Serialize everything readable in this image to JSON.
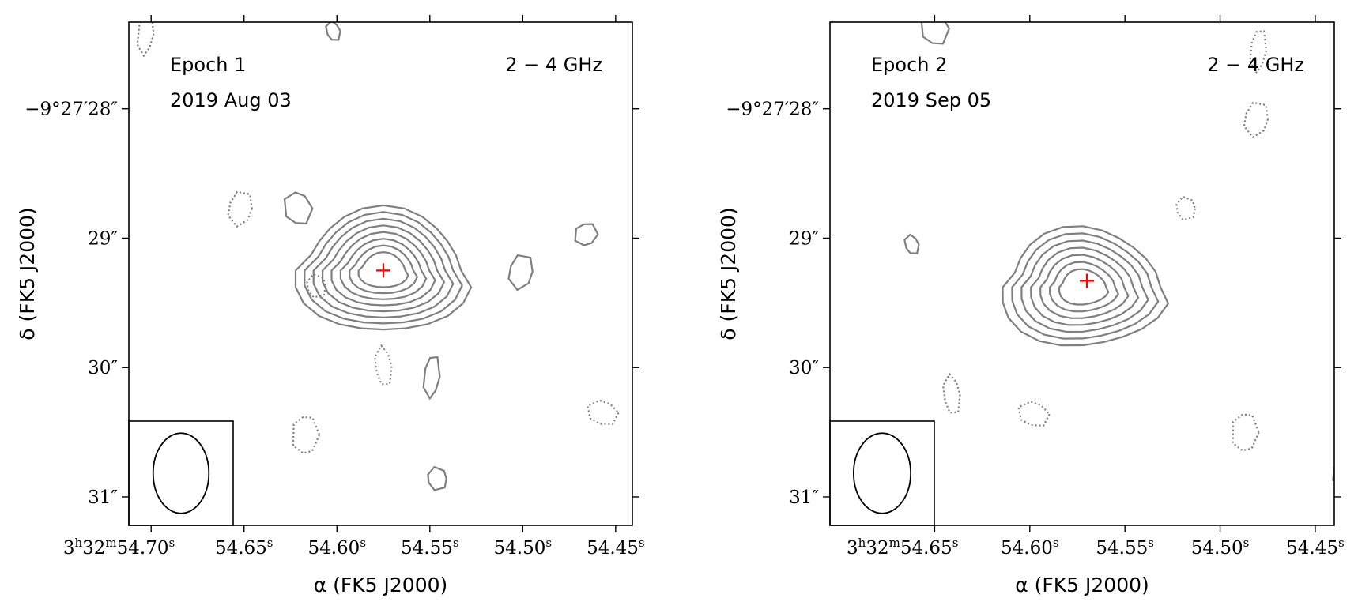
{
  "chart_data": [
    {
      "type": "contour",
      "epoch_label": "Epoch 1",
      "date_label": "2019 Aug 03",
      "band_label": "2 − 4 GHz",
      "xlabel": "α (FK5 J2000)",
      "ylabel": "δ (FK5 J2000)",
      "ra_ticks": [
        {
          "pos": 54.7,
          "label": "54.70",
          "prefix": "3h32m"
        },
        {
          "pos": 54.65,
          "label": "54.65"
        },
        {
          "pos": 54.6,
          "label": "54.60"
        },
        {
          "pos": 54.55,
          "label": "54.55"
        },
        {
          "pos": 54.5,
          "label": "54.50"
        },
        {
          "pos": 54.45,
          "label": "54.45"
        }
      ],
      "dec_ticks": [
        {
          "pos": 28,
          "label": "−9°27′28″"
        },
        {
          "pos": 29,
          "label": "29″"
        },
        {
          "pos": 30,
          "label": "30″"
        },
        {
          "pos": 31,
          "label": "31″"
        }
      ],
      "ra_range": [
        54.712,
        54.441
      ],
      "dec_range": [
        27.33,
        31.22
      ],
      "source_marker": {
        "ra": 54.575,
        "dec": 29.25,
        "color": "#ff0000"
      },
      "source_contours": {
        "ra": 54.575,
        "dec": 29.25,
        "levels": 8,
        "outer_semi_ra": 0.045,
        "outer_semi_dec": 0.48
      },
      "beam": {
        "semi_ra": 0.015,
        "semi_dec": 0.31
      },
      "positive_blobs": [
        {
          "ra": 54.602,
          "dec": 27.4
        },
        {
          "ra": 54.621,
          "dec": 28.77
        },
        {
          "ra": 54.466,
          "dec": 28.97
        },
        {
          "ra": 54.549,
          "dec": 30.07
        },
        {
          "ra": 54.501,
          "dec": 29.26
        },
        {
          "ra": 54.546,
          "dec": 30.86
        }
      ],
      "negative_blobs": [
        {
          "ra": 54.703,
          "dec": 27.42
        },
        {
          "ra": 54.652,
          "dec": 28.77
        },
        {
          "ra": 54.611,
          "dec": 29.37
        },
        {
          "ra": 54.575,
          "dec": 29.99
        },
        {
          "ra": 54.457,
          "dec": 30.35
        },
        {
          "ra": 54.617,
          "dec": 30.52
        }
      ]
    },
    {
      "type": "contour",
      "epoch_label": "Epoch 2",
      "date_label": "2019 Sep 05",
      "band_label": "2 − 4 GHz",
      "xlabel": "α (FK5 J2000)",
      "ylabel": "δ (FK5 J2000)",
      "ra_ticks": [
        {
          "pos": 54.65,
          "label": "54.65",
          "prefix": "3h32m"
        },
        {
          "pos": 54.6,
          "label": "54.60"
        },
        {
          "pos": 54.55,
          "label": "54.55"
        },
        {
          "pos": 54.5,
          "label": "54.50"
        },
        {
          "pos": 54.45,
          "label": "54.45"
        }
      ],
      "dec_ticks": [
        {
          "pos": 28,
          "label": "−9°27′28″"
        },
        {
          "pos": 29,
          "label": "29″"
        },
        {
          "pos": 30,
          "label": "30″"
        },
        {
          "pos": 31,
          "label": "31″"
        }
      ],
      "ra_range": [
        54.705,
        54.44
      ],
      "dec_range": [
        27.33,
        31.22
      ],
      "source_marker": {
        "ra": 54.57,
        "dec": 29.33,
        "color": "#ff0000"
      },
      "source_contours": {
        "ra": 54.572,
        "dec": 29.38,
        "levels": 7,
        "outer_semi_ra": 0.042,
        "outer_semi_dec": 0.46
      },
      "beam": {
        "semi_ra": 0.015,
        "semi_dec": 0.31
      },
      "positive_blobs": [
        {
          "ra": 54.662,
          "dec": 29.05
        },
        {
          "ra": 54.65,
          "dec": 27.38
        },
        {
          "ra": 54.435,
          "dec": 30.82
        }
      ],
      "negative_blobs": [
        {
          "ra": 54.48,
          "dec": 27.55
        },
        {
          "ra": 54.481,
          "dec": 28.08
        },
        {
          "ra": 54.518,
          "dec": 28.77
        },
        {
          "ra": 54.641,
          "dec": 30.21
        },
        {
          "ra": 54.598,
          "dec": 30.36
        },
        {
          "ra": 54.487,
          "dec": 30.5
        }
      ]
    }
  ]
}
